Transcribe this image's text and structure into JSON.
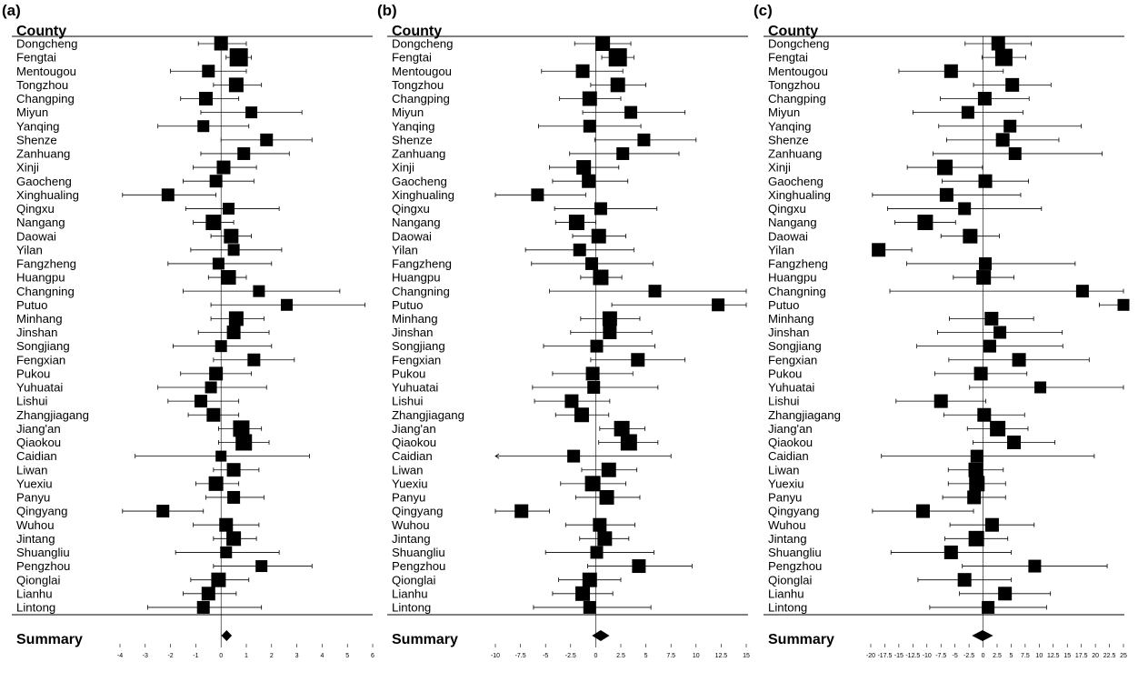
{
  "counties": [
    "Dongcheng",
    "Fengtai",
    "Mentougou",
    "Tongzhou",
    "Changping",
    "Miyun",
    "Yanqing",
    "Shenze",
    "Zanhuang",
    "Xinji",
    "Gaocheng",
    "Xinghualing",
    "Qingxu",
    "Nangang",
    "Daowai",
    "Yilan",
    "Fangzheng",
    "Huangpu",
    "Changning",
    "Putuo",
    "Minhang",
    "Jinshan",
    "Songjiang",
    "Fengxian",
    "Pukou",
    "Yuhuatai",
    "Lishui",
    "Zhangjiagang",
    "Jiang'an",
    "Qiaokou",
    "Caidian",
    "Liwan",
    "Yuexiu",
    "Panyu",
    "Qingyang",
    "Wuhou",
    "Jintang",
    "Shuangliu",
    "Pengzhou",
    "Qionglai",
    "Lianhu",
    "Lintong"
  ],
  "chart_data": [
    {
      "type": "forest",
      "panel_label": "(a)",
      "column_header": "County",
      "summary_label": "Summary",
      "xlim": [
        -4,
        6
      ],
      "ticks": [
        -4,
        -3,
        -2,
        -1,
        0,
        1,
        2,
        3,
        4,
        5,
        6
      ],
      "tick_labels": [
        "-4",
        "-3",
        "-2",
        "-1",
        "0",
        "1",
        "2",
        "3",
        "4",
        "5",
        "6"
      ],
      "estimates": [
        0.0,
        0.7,
        -0.5,
        0.6,
        -0.6,
        1.2,
        -0.7,
        1.8,
        0.9,
        0.1,
        -0.2,
        -2.1,
        0.3,
        -0.3,
        0.4,
        0.5,
        -0.1,
        0.3,
        1.5,
        2.6,
        0.6,
        0.5,
        0.0,
        1.3,
        -0.2,
        -0.4,
        -0.8,
        -0.3,
        0.8,
        0.9,
        0.0,
        0.5,
        -0.2,
        0.5,
        -2.3,
        0.2,
        0.5,
        0.2,
        1.6,
        -0.1,
        -0.5,
        -0.7
      ],
      "lower": [
        -0.9,
        0.2,
        -2.0,
        -0.3,
        -1.6,
        -0.8,
        -2.5,
        0.0,
        -0.8,
        -1.1,
        -1.5,
        -3.9,
        -1.4,
        -1.1,
        -0.4,
        -1.2,
        -2.1,
        -0.5,
        -1.5,
        -0.4,
        -0.4,
        -0.9,
        -1.9,
        -0.3,
        -1.6,
        -2.5,
        -2.1,
        -1.3,
        -0.1,
        -0.1,
        -3.4,
        -0.3,
        -1.0,
        -0.6,
        -3.9,
        -1.1,
        -0.3,
        -1.8,
        -0.3,
        -1.2,
        -1.5,
        -2.9
      ],
      "upper": [
        1.0,
        1.2,
        1.0,
        1.6,
        0.7,
        3.2,
        1.1,
        3.6,
        2.7,
        1.4,
        1.3,
        -0.2,
        2.3,
        0.5,
        1.2,
        2.4,
        2.0,
        1.0,
        4.7,
        5.7,
        1.7,
        1.9,
        2.0,
        2.9,
        1.2,
        1.8,
        0.7,
        0.7,
        1.6,
        1.9,
        3.5,
        1.5,
        0.7,
        1.7,
        -0.7,
        1.5,
        1.4,
        2.3,
        3.6,
        1.1,
        0.6,
        1.6
      ],
      "weights": [
        0.5,
        1.0,
        0.4,
        0.6,
        0.5,
        0.3,
        0.3,
        0.4,
        0.4,
        0.5,
        0.4,
        0.4,
        0.3,
        0.7,
        0.6,
        0.3,
        0.3,
        0.6,
        0.3,
        0.3,
        0.6,
        0.5,
        0.3,
        0.4,
        0.5,
        0.3,
        0.4,
        0.5,
        0.8,
        0.8,
        0.2,
        0.5,
        0.6,
        0.4,
        0.4,
        0.5,
        0.6,
        0.3,
        0.3,
        0.6,
        0.5,
        0.4
      ],
      "summary": {
        "estimate": 0.22,
        "lower": 0.12,
        "upper": 0.32
      }
    },
    {
      "type": "forest",
      "panel_label": "(b)",
      "column_header": "County",
      "summary_label": "Summary",
      "xlim": [
        -10,
        15
      ],
      "ticks": [
        -10,
        -7.5,
        -5,
        -2.5,
        0,
        2.5,
        5,
        7.5,
        10,
        12.5,
        15
      ],
      "tick_labels": [
        "-10",
        "-7.5",
        "-5",
        "-2.5",
        "0",
        "2.5",
        "5",
        "7.5",
        "10",
        "12.5",
        "15"
      ],
      "estimates": [
        0.7,
        2.2,
        -1.3,
        2.2,
        -0.6,
        3.5,
        -0.6,
        4.8,
        2.7,
        -1.2,
        -0.7,
        -5.8,
        0.5,
        -1.9,
        0.3,
        -1.6,
        -0.4,
        0.5,
        5.9,
        12.2,
        1.4,
        1.4,
        0.1,
        4.2,
        -0.3,
        -0.2,
        -2.4,
        -1.4,
        2.6,
        3.3,
        -2.2,
        1.3,
        -0.3,
        1.1,
        -7.4,
        0.4,
        0.9,
        0.1,
        4.3,
        -0.6,
        -1.3,
        -0.6
      ],
      "lower": [
        -2.1,
        0.6,
        -5.4,
        -0.5,
        -3.6,
        -1.3,
        -5.7,
        -0.1,
        -2.6,
        -4.6,
        -4.3,
        -10.0,
        -4.1,
        -4.0,
        -2.3,
        -7.0,
        -6.4,
        -1.5,
        -4.6,
        1.6,
        -1.5,
        -2.5,
        -5.2,
        -0.5,
        -4.3,
        -6.3,
        -6.1,
        -4.0,
        0.4,
        0.3,
        -10.1,
        -1.4,
        -3.5,
        -2.0,
        -10.0,
        -3.0,
        -1.6,
        -5.0,
        -0.8,
        -3.7,
        -4.3,
        -6.2
      ],
      "upper": [
        3.5,
        3.8,
        2.7,
        5.0,
        2.5,
        8.9,
        4.5,
        10.0,
        8.3,
        2.3,
        3.2,
        -1.0,
        6.1,
        0.0,
        3.0,
        3.8,
        5.7,
        2.6,
        15.0,
        15.0,
        4.4,
        5.6,
        5.9,
        8.9,
        3.7,
        6.2,
        1.4,
        1.3,
        4.9,
        6.2,
        7.5,
        4.1,
        3.0,
        4.4,
        -4.6,
        3.9,
        3.3,
        5.8,
        9.6,
        2.5,
        1.7,
        5.5
      ],
      "weights": [
        0.6,
        1.0,
        0.5,
        0.6,
        0.6,
        0.4,
        0.4,
        0.4,
        0.4,
        0.6,
        0.5,
        0.4,
        0.4,
        0.7,
        0.6,
        0.4,
        0.4,
        0.7,
        0.4,
        0.4,
        0.6,
        0.5,
        0.4,
        0.5,
        0.5,
        0.4,
        0.5,
        0.6,
        0.7,
        0.8,
        0.4,
        0.6,
        0.7,
        0.6,
        0.5,
        0.5,
        0.6,
        0.4,
        0.5,
        0.6,
        0.6,
        0.4
      ],
      "summary": {
        "estimate": 0.5,
        "lower": -0.1,
        "upper": 1.1
      }
    },
    {
      "type": "forest",
      "panel_label": "(c)",
      "column_header": "County",
      "summary_label": "Summary",
      "xlim": [
        -20,
        25
      ],
      "ticks": [
        -20,
        -17.5,
        -15,
        -12.5,
        -10,
        -7.5,
        -5,
        -2.5,
        0,
        2.5,
        5,
        7.5,
        10,
        12.5,
        15,
        17.5,
        20,
        22.5,
        25
      ],
      "tick_labels": [
        "-20",
        "-17.5",
        "-15",
        "-12.5",
        "-10",
        "-7.5",
        "-5",
        "-2.5",
        "0",
        "2.5",
        "5",
        "7.5",
        "10",
        "12.5",
        "15",
        "17.5",
        "20",
        "22.5",
        "25"
      ],
      "estimates": [
        2.7,
        3.7,
        -5.7,
        5.2,
        0.3,
        -2.7,
        4.8,
        3.5,
        5.7,
        -6.8,
        0.4,
        -6.5,
        -3.3,
        -10.3,
        -2.3,
        -18.6,
        0.4,
        0.1,
        17.7,
        25.0,
        1.5,
        3.0,
        1.2,
        6.4,
        -0.4,
        10.2,
        -7.5,
        0.2,
        2.6,
        5.5,
        -1.1,
        -1.3,
        -1.1,
        -1.6,
        -10.7,
        1.6,
        -1.2,
        -5.7,
        9.2,
        -3.3,
        3.9,
        0.9
      ],
      "lower": [
        -3.2,
        -0.2,
        -15.0,
        -1.7,
        -7.6,
        -12.5,
        -7.9,
        -6.5,
        -8.9,
        -13.5,
        -7.3,
        -19.7,
        -17.0,
        -15.7,
        -7.5,
        -19.7,
        -13.6,
        -5.3,
        -16.6,
        20.7,
        -6.0,
        -8.1,
        -11.8,
        -6.1,
        -8.6,
        -2.4,
        -15.5,
        -7.0,
        -2.8,
        -1.8,
        -18.1,
        -6.2,
        -6.2,
        -7.2,
        -19.7,
        -5.9,
        -6.8,
        -16.4,
        -3.7,
        -11.6,
        -4.2,
        -9.5
      ],
      "upper": [
        8.6,
        7.6,
        3.6,
        12.1,
        8.2,
        7.1,
        17.5,
        13.5,
        21.2,
        -0.1,
        8.1,
        6.7,
        10.4,
        -4.9,
        2.9,
        -12.7,
        16.4,
        5.5,
        25.0,
        25.0,
        9.0,
        14.1,
        14.2,
        18.9,
        7.8,
        25.0,
        0.5,
        7.4,
        8.0,
        12.8,
        19.8,
        3.6,
        4.0,
        4.0,
        -1.7,
        9.1,
        4.4,
        5.0,
        22.1,
        5.0,
        12.0,
        11.3
      ],
      "weights": [
        0.5,
        0.9,
        0.5,
        0.5,
        0.5,
        0.4,
        0.4,
        0.5,
        0.4,
        0.7,
        0.5,
        0.5,
        0.4,
        0.7,
        0.6,
        0.5,
        0.4,
        0.6,
        0.4,
        0.3,
        0.5,
        0.4,
        0.4,
        0.5,
        0.5,
        0.3,
        0.5,
        0.5,
        0.7,
        0.5,
        0.4,
        0.6,
        0.7,
        0.5,
        0.5,
        0.5,
        0.7,
        0.5,
        0.4,
        0.5,
        0.5,
        0.4
      ],
      "summary": {
        "estimate": -0.1,
        "lower": -1.5,
        "upper": 1.3
      }
    }
  ]
}
